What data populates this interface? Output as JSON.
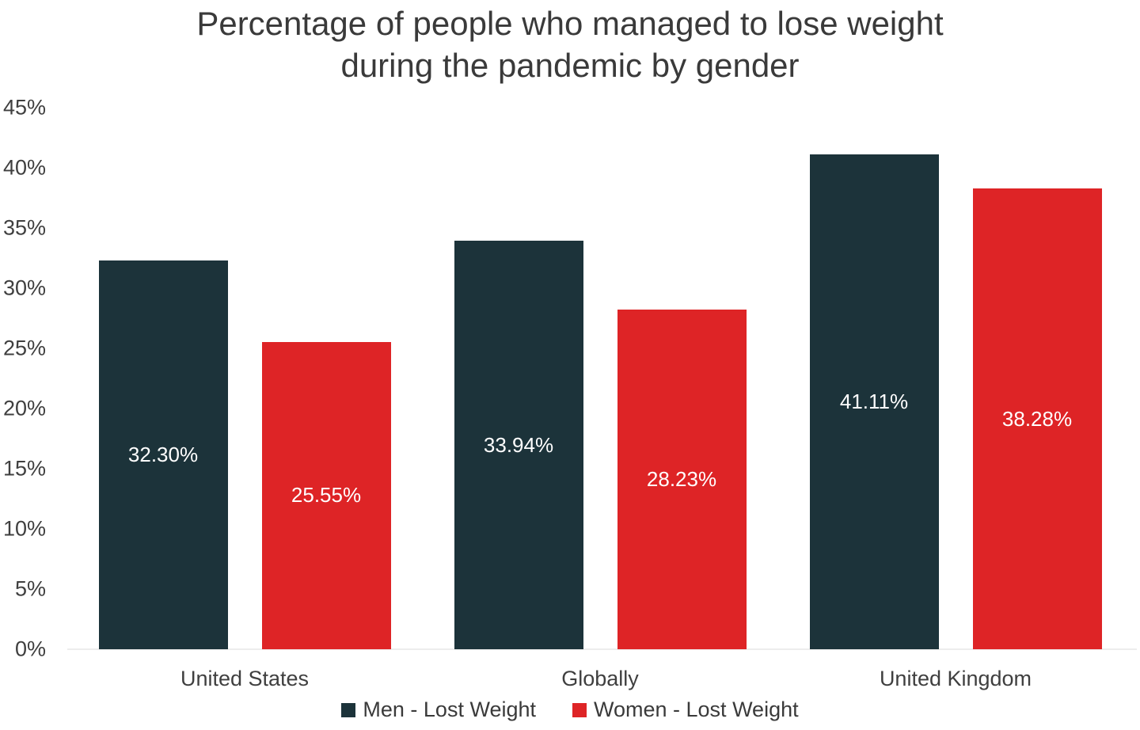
{
  "chart_data": {
    "type": "bar",
    "title": "Percentage of people who managed to lose weight during the pandemic by gender",
    "categories": [
      "United States",
      "Globally",
      "United Kingdom"
    ],
    "series": [
      {
        "name": "Men - Lost Weight",
        "color": "#1c333a",
        "values": [
          32.3,
          33.94,
          41.11
        ],
        "labels": [
          "32.30%",
          "33.94%",
          "41.11%"
        ]
      },
      {
        "name": "Women - Lost Weight",
        "color": "#de2426",
        "values": [
          25.55,
          28.23,
          38.28
        ],
        "labels": [
          "25.55%",
          "28.23%",
          "38.28%"
        ]
      }
    ],
    "ylim": [
      0,
      45
    ],
    "ytick_labels": [
      "0%",
      "5%",
      "10%",
      "15%",
      "20%",
      "25%",
      "30%",
      "35%",
      "40%",
      "45%"
    ],
    "grid": false,
    "legend_position": "bottom",
    "bar_label_color": "#ffffff",
    "axis_text_color": "#3f3f3f",
    "title_color": "#3a3a3a",
    "baseline_color": "#ededed",
    "background_color": "#ffffff"
  }
}
